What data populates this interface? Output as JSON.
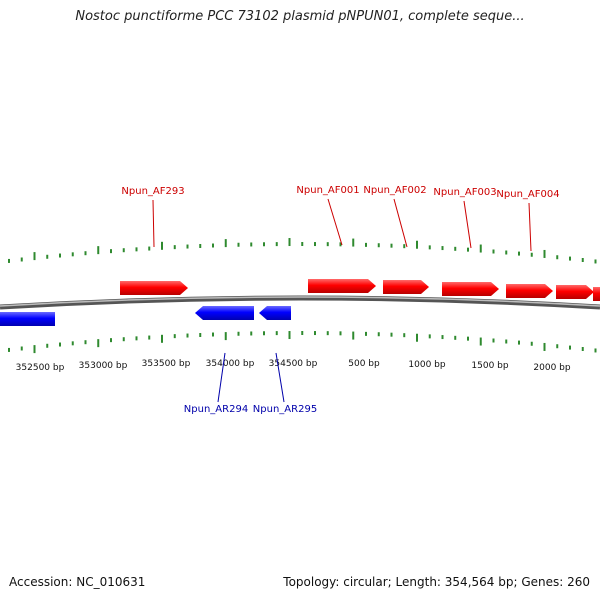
{
  "title": "Nostoc punctiforme PCC 73102 plasmid pNPUN01, complete seque...",
  "footer": {
    "accession": "Accession: NC_010631",
    "summary": "Topology: circular; Length: 354,564 bp; Genes: 260"
  },
  "colors": {
    "forward": "#ff0000",
    "reverse": "#0000ff",
    "forward_label": "#cc0000",
    "reverse_label": "#0000aa",
    "tick": "#2f8a2f",
    "backbone": "#808080"
  },
  "scale_labels": [
    "352500 bp",
    "353000 bp",
    "353500 bp",
    "354000 bp",
    "354500 bp",
    "500 bp",
    "1000 bp",
    "1500 bp",
    "2000 bp"
  ],
  "forward_genes": [
    {
      "label": "Npun_AF293",
      "strand": "+"
    },
    {
      "label": "Npun_AF001",
      "strand": "+"
    },
    {
      "label": "Npun_AF002",
      "strand": "+"
    },
    {
      "label": "Npun_AF003",
      "strand": "+"
    },
    {
      "label": "Npun_AF004",
      "strand": "+"
    }
  ],
  "reverse_genes": [
    {
      "label": "Npun_AR294",
      "strand": "-"
    },
    {
      "label": "Npun_AR295",
      "strand": "-"
    }
  ]
}
